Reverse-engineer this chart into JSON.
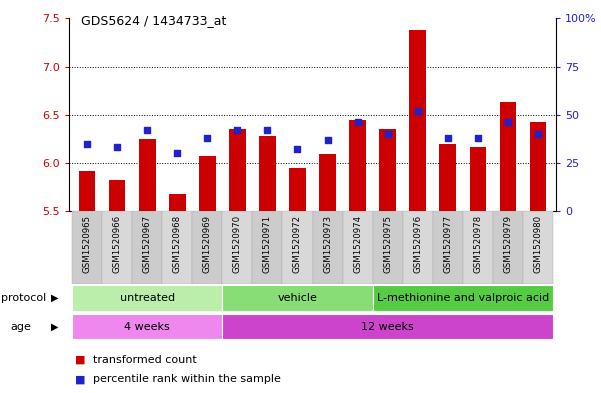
{
  "title": "GDS5624 / 1434733_at",
  "samples": [
    "GSM1520965",
    "GSM1520966",
    "GSM1520967",
    "GSM1520968",
    "GSM1520969",
    "GSM1520970",
    "GSM1520971",
    "GSM1520972",
    "GSM1520973",
    "GSM1520974",
    "GSM1520975",
    "GSM1520976",
    "GSM1520977",
    "GSM1520978",
    "GSM1520979",
    "GSM1520980"
  ],
  "transformed_counts": [
    5.92,
    5.82,
    6.25,
    5.68,
    6.07,
    6.35,
    6.28,
    5.95,
    6.09,
    6.45,
    6.35,
    7.38,
    6.2,
    6.17,
    6.63,
    6.42
  ],
  "percentile_ranks": [
    35,
    33,
    42,
    30,
    38,
    42,
    42,
    32,
    37,
    46,
    40,
    52,
    38,
    38,
    46,
    40
  ],
  "ylim_left": [
    5.5,
    7.5
  ],
  "ylim_right": [
    0,
    100
  ],
  "yticks_left": [
    5.5,
    6.0,
    6.5,
    7.0,
    7.5
  ],
  "yticks_right": [
    0,
    25,
    50,
    75,
    100
  ],
  "bar_color": "#cc0000",
  "dot_color": "#2222cc",
  "bar_bottom": 5.5,
  "protocol_groups": [
    {
      "label": "untreated",
      "start": 0,
      "end": 4
    },
    {
      "label": "vehicle",
      "start": 5,
      "end": 9
    },
    {
      "label": "L-methionine and valproic acid",
      "start": 10,
      "end": 15
    }
  ],
  "protocol_colors": [
    "#bbeeaa",
    "#88dd77",
    "#55cc44"
  ],
  "age_groups": [
    {
      "label": "4 weeks",
      "start": 0,
      "end": 4
    },
    {
      "label": "12 weeks",
      "start": 5,
      "end": 15
    }
  ],
  "age_colors": [
    "#ee88ee",
    "#cc44cc"
  ],
  "legend_items": [
    {
      "color": "#cc0000",
      "label": "transformed count"
    },
    {
      "color": "#2222cc",
      "label": "percentile rank within the sample"
    }
  ],
  "bar_width": 0.55,
  "dot_size": 20,
  "grid_dotted_color": "#000000",
  "xlabel_bg_color": "#d0d0d0",
  "plot_bg_color": "#ffffff",
  "left_tick_color": "#cc0000",
  "right_tick_color": "#2222cc"
}
